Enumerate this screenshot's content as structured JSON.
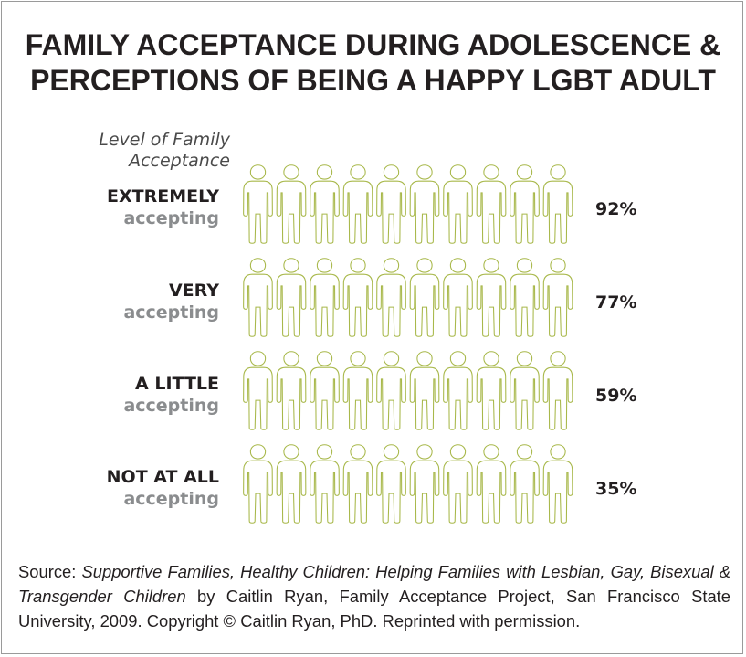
{
  "chart_data": {
    "type": "pictogram",
    "title": [
      "FAMILY ACCEPTANCE DURING ADOLESCENCE &",
      "PERCEPTIONS OF BEING A HAPPY LGBT ADULT"
    ],
    "category_axis_label": "Level of Family\nAcceptance",
    "icons_per_row": 10,
    "categories": [
      {
        "level": "EXTREMELY",
        "suffix": "accepting",
        "value": 92,
        "value_label": "92%"
      },
      {
        "level": "VERY",
        "suffix": "accepting",
        "value": 77,
        "value_label": "77%"
      },
      {
        "level": "A LITTLE",
        "suffix": "accepting",
        "value": 59,
        "value_label": "59%"
      },
      {
        "level": "NOT AT ALL",
        "suffix": "accepting",
        "value": 35,
        "value_label": "35%"
      }
    ]
  },
  "source": {
    "prefix": "Source:  ",
    "title": "Supportive Families, Healthy Children: Helping Families with Lesbian, Gay, Bisexual & Transgender Children",
    "rest": " by Caitlin Ryan, Family Acceptance Project, San Francisco State University, 2009. Copyright © Caitlin Ryan, PhD. Reprinted with permission."
  },
  "colors": {
    "filled": "#a8b84a",
    "empty_outline": "#a8b84a",
    "empty_fill": "#ffffff",
    "title_text": "#231f20",
    "accepting_text": "#8a8c8e"
  }
}
